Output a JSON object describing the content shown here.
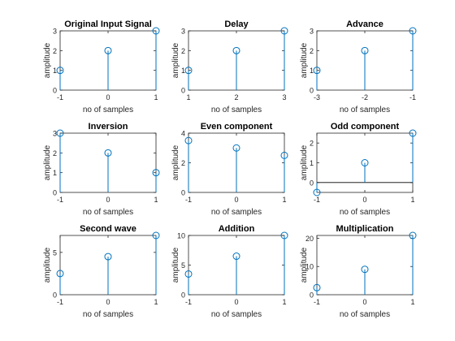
{
  "figure": {
    "background": "#ffffff"
  },
  "style": {
    "stem_color": "#0072bd",
    "axis_color": "#262626",
    "baseline_color": "#000000"
  },
  "chart_data": [
    {
      "type": "stem",
      "title": "Original Input Signal",
      "xlabel": "no of samples",
      "ylabel": "amplitude",
      "x": [
        -1,
        0,
        1
      ],
      "y": [
        1,
        2,
        3
      ],
      "xlim": [
        -1,
        1
      ],
      "ylim": [
        0,
        3
      ],
      "xticks": [
        "-1",
        "0",
        "1"
      ],
      "yticks": [
        "0",
        "1",
        "2",
        "3"
      ],
      "grid": false
    },
    {
      "type": "stem",
      "title": "Delay",
      "xlabel": "no of samples",
      "ylabel": "amplitude",
      "x": [
        1,
        2,
        3
      ],
      "y": [
        1,
        2,
        3
      ],
      "xlim": [
        1,
        3
      ],
      "ylim": [
        0,
        3
      ],
      "xticks": [
        "1",
        "2",
        "3"
      ],
      "yticks": [
        "0",
        "1",
        "2",
        "3"
      ],
      "grid": false
    },
    {
      "type": "stem",
      "title": "Advance",
      "xlabel": "no of samples",
      "ylabel": "amplitude",
      "x": [
        -3,
        -2,
        -1
      ],
      "y": [
        1,
        2,
        3
      ],
      "xlim": [
        -3,
        -1
      ],
      "ylim": [
        0,
        3
      ],
      "xticks": [
        "-3",
        "-2",
        "-1"
      ],
      "yticks": [
        "0",
        "1",
        "2",
        "3"
      ],
      "grid": false
    },
    {
      "type": "stem",
      "title": "Inversion",
      "xlabel": "no of samples",
      "ylabel": "amplitude",
      "x": [
        -1,
        0,
        1
      ],
      "y": [
        3,
        2,
        1
      ],
      "xlim": [
        -1,
        1
      ],
      "ylim": [
        0,
        3
      ],
      "xticks": [
        "-1",
        "0",
        "1"
      ],
      "yticks": [
        "0",
        "1",
        "2",
        "3"
      ],
      "grid": false
    },
    {
      "type": "stem",
      "title": "Even component",
      "xlabel": "no of samples",
      "ylabel": "amplitude",
      "x": [
        -1,
        0,
        1
      ],
      "y": [
        3.5,
        3,
        2.5
      ],
      "xlim": [
        -1,
        1
      ],
      "ylim": [
        0,
        4
      ],
      "xticks": [
        "-1",
        "0",
        "1"
      ],
      "yticks": [
        "0",
        "2",
        "4"
      ],
      "grid": false
    },
    {
      "type": "stem",
      "title": "Odd component",
      "xlabel": "no of samples",
      "ylabel": "amplitude",
      "x": [
        -1,
        0,
        1
      ],
      "y": [
        -0.5,
        1,
        2.5
      ],
      "xlim": [
        -1,
        1
      ],
      "ylim": [
        -0.5,
        2.5
      ],
      "xticks": [
        "-1",
        "0",
        "1"
      ],
      "yticks": [
        "0",
        "1",
        "2"
      ],
      "baseline": 0,
      "grid": false
    },
    {
      "type": "stem",
      "title": "Second wave",
      "xlabel": "no of samples",
      "ylabel": "amplitude",
      "x": [
        -1,
        0,
        1
      ],
      "y": [
        2.5,
        4.5,
        7
      ],
      "xlim": [
        -1,
        1
      ],
      "ylim": [
        0,
        7
      ],
      "xticks": [
        "-1",
        "0",
        "1"
      ],
      "yticks": [
        "0",
        "5"
      ],
      "grid": false
    },
    {
      "type": "stem",
      "title": "Addition",
      "xlabel": "no of samples",
      "ylabel": "amplitude",
      "x": [
        -1,
        0,
        1
      ],
      "y": [
        3.5,
        6.5,
        10
      ],
      "xlim": [
        -1,
        1
      ],
      "ylim": [
        0,
        10
      ],
      "xticks": [
        "-1",
        "0",
        "1"
      ],
      "yticks": [
        "0",
        "5",
        "10"
      ],
      "grid": false
    },
    {
      "type": "stem",
      "title": "Multiplication",
      "xlabel": "no of samples",
      "ylabel": "amplitude",
      "x": [
        -1,
        0,
        1
      ],
      "y": [
        2.5,
        9,
        21
      ],
      "xlim": [
        -1,
        1
      ],
      "ylim": [
        0,
        21
      ],
      "xticks": [
        "-1",
        "0",
        "1"
      ],
      "yticks": [
        "0",
        "10",
        "20"
      ],
      "grid": false
    }
  ]
}
